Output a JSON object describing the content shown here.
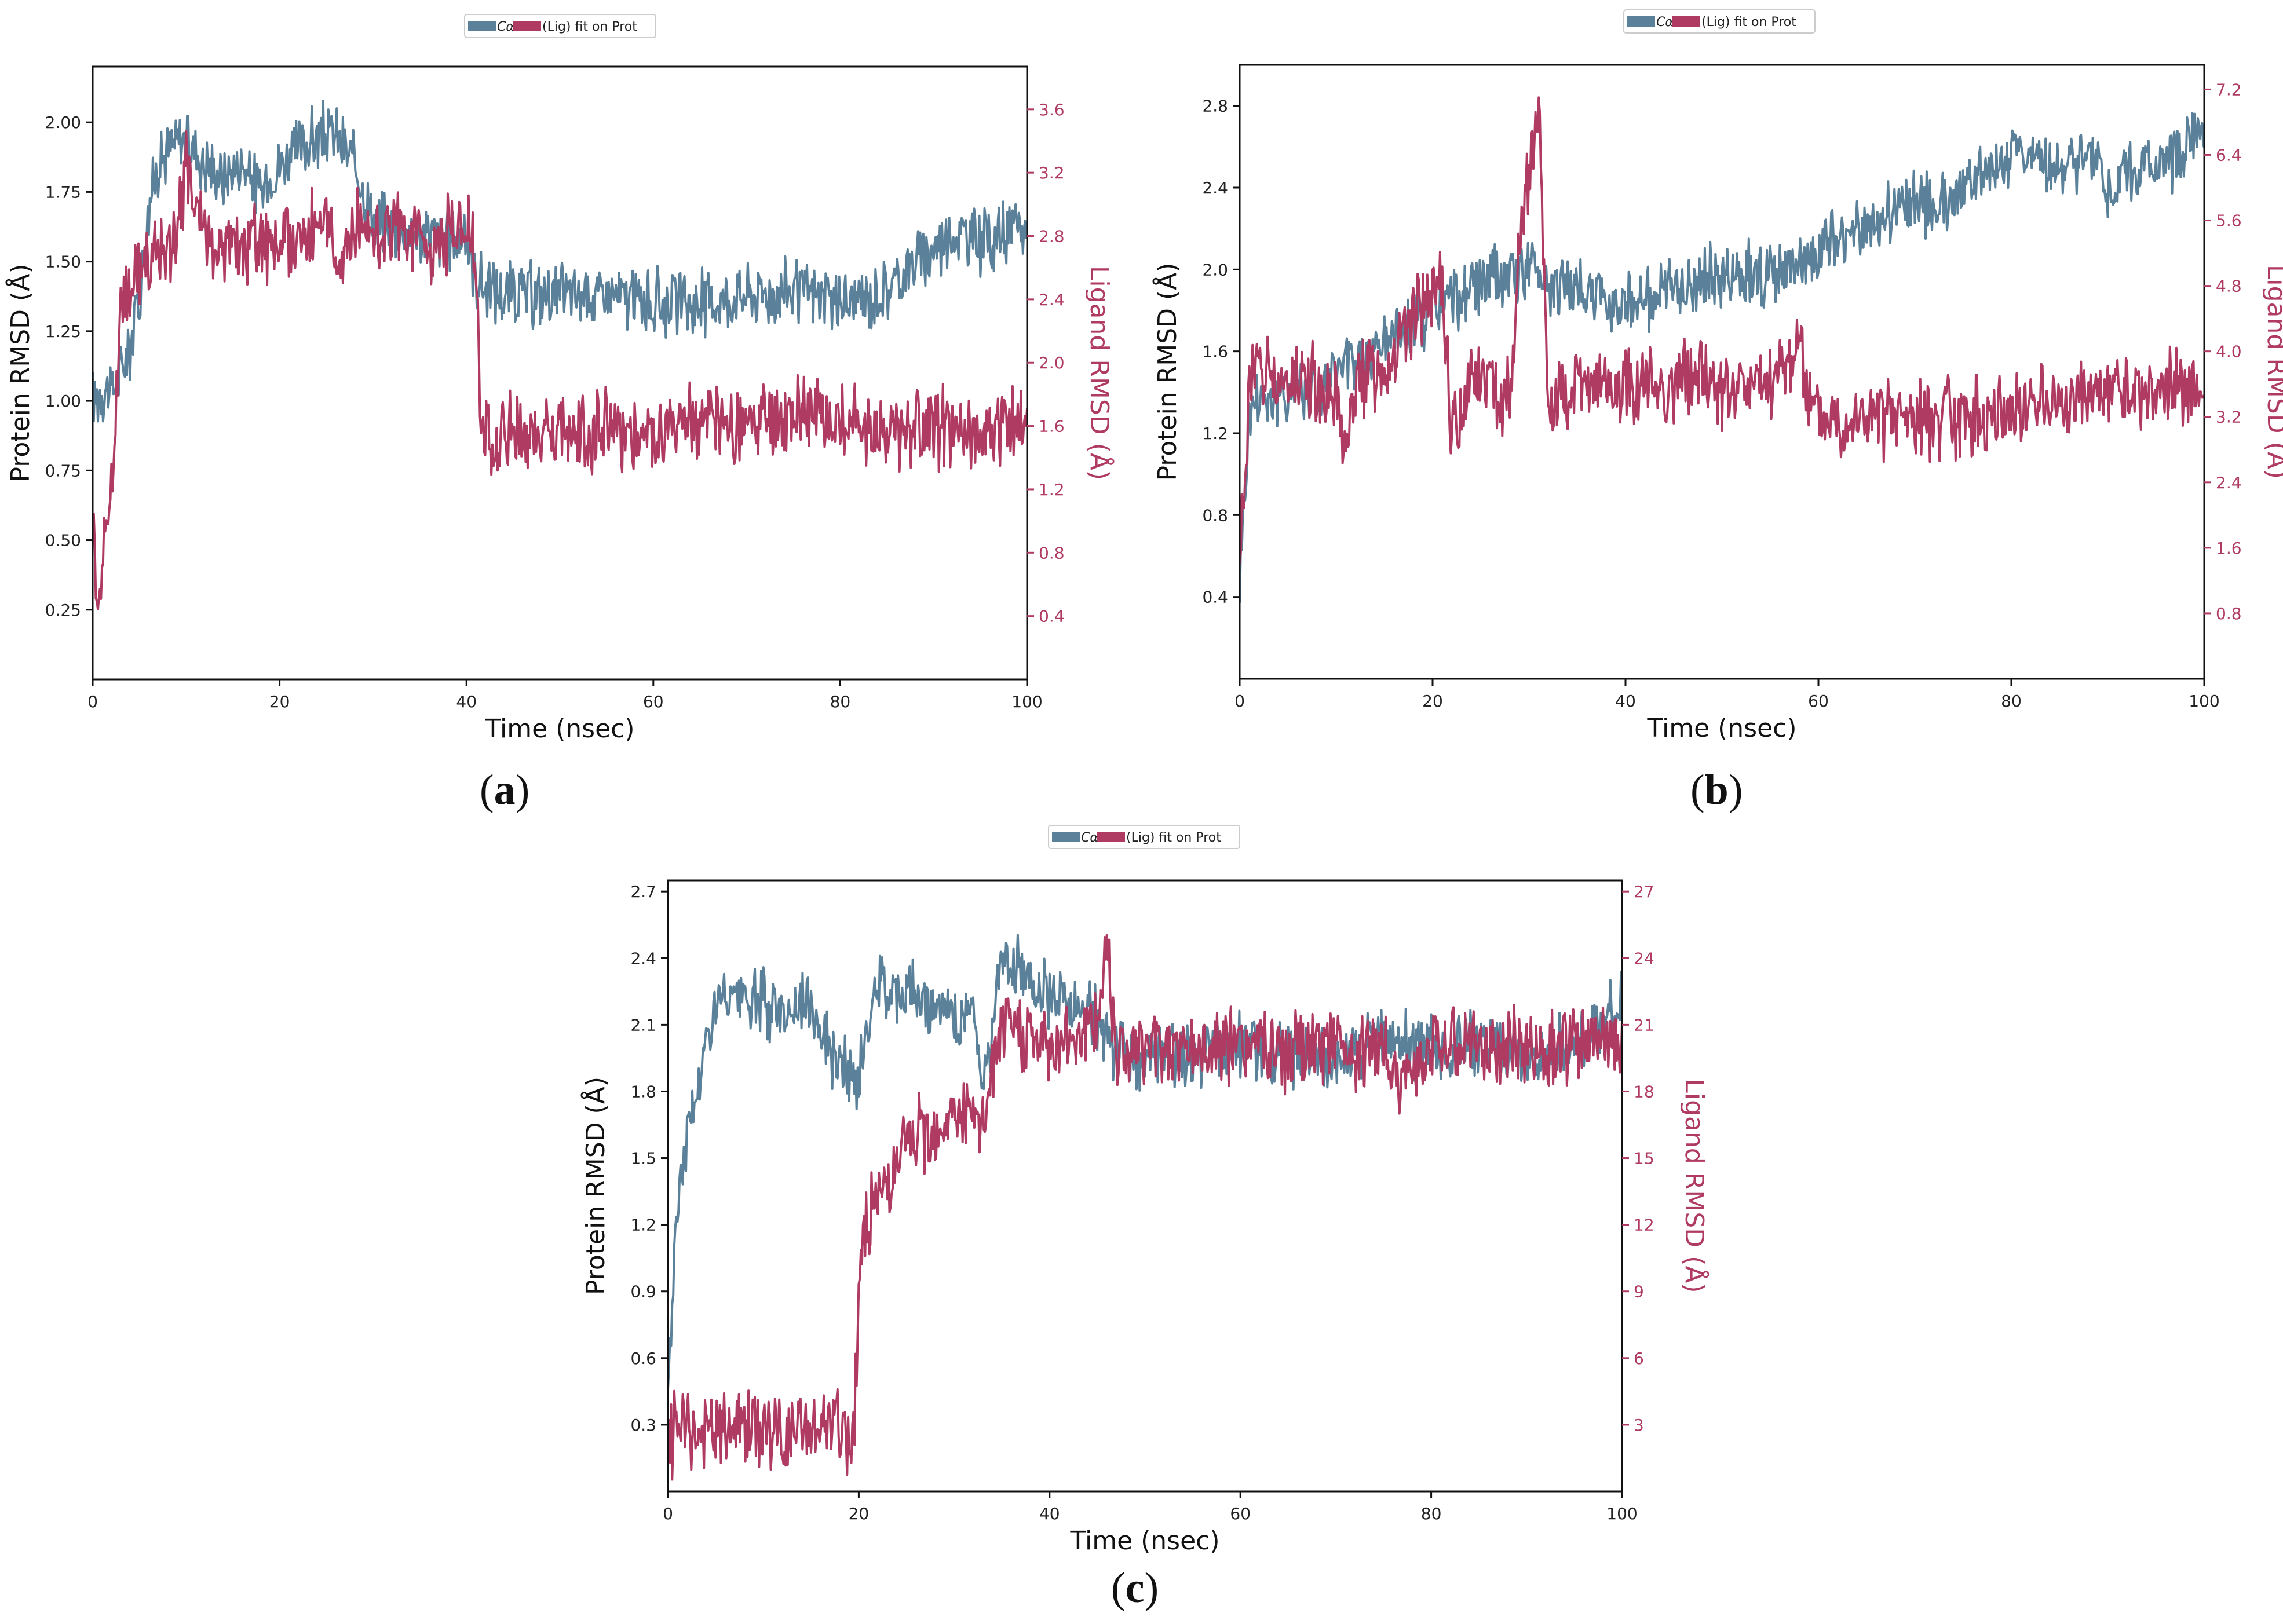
{
  "colors": {
    "protein": "#5a8199",
    "ligand": "#b03b62",
    "axis": "#111111"
  },
  "chart_data": [
    {
      "id": "a",
      "panel_label": "a",
      "type": "line",
      "legend": {
        "protein_label": "Cα",
        "ligand_label": "(Lig) fit on Prot",
        "placement": "top-center"
      },
      "xlabel": "Time (nsec)",
      "ylabel_left": "Protein RMSD (Å)",
      "ylabel_right": "Ligand RMSD (Å)",
      "xlim": [
        0,
        100
      ],
      "ylim_left": [
        0.0,
        2.2
      ],
      "ylim_right": [
        0.0,
        3.87
      ],
      "xticks": [
        0,
        20,
        40,
        60,
        80,
        100
      ],
      "xtick_labels": [
        "0",
        "20",
        "40",
        "60",
        "80",
        "100"
      ],
      "yticks_left": [
        0.25,
        0.5,
        0.75,
        1.0,
        1.25,
        1.5,
        1.75,
        2.0
      ],
      "ytick_labels_left": [
        "0.25",
        "0.50",
        "0.75",
        "1.00",
        "1.25",
        "1.50",
        "1.75",
        "2.00"
      ],
      "yticks_right": [
        0.4,
        0.8,
        1.2,
        1.6,
        2.0,
        2.4,
        2.8,
        3.2,
        3.6
      ],
      "ytick_labels_right": [
        "0.4",
        "0.8",
        "1.2",
        "1.6",
        "2.0",
        "2.4",
        "2.8",
        "3.2",
        "3.6"
      ],
      "series": [
        {
          "name": "Cα (Protein RMSD)",
          "axis": "left",
          "x": [
            0,
            1,
            2,
            3,
            4,
            5,
            6,
            7,
            8,
            10,
            12,
            14,
            16,
            18,
            20,
            22,
            24,
            26,
            28,
            30,
            32,
            34,
            36,
            38,
            40,
            41,
            42,
            45,
            50,
            55,
            60,
            65,
            70,
            75,
            80,
            82,
            85,
            88,
            90,
            92,
            95,
            98,
            100
          ],
          "values": [
            1.0,
            1.05,
            1.03,
            1.1,
            1.2,
            1.4,
            1.7,
            1.85,
            1.9,
            1.95,
            1.85,
            1.8,
            1.85,
            1.75,
            1.85,
            1.9,
            1.95,
            1.95,
            1.85,
            1.65,
            1.62,
            1.6,
            1.6,
            1.58,
            1.6,
            1.45,
            1.4,
            1.38,
            1.38,
            1.38,
            1.35,
            1.35,
            1.38,
            1.4,
            1.35,
            1.35,
            1.4,
            1.5,
            1.55,
            1.6,
            1.58,
            1.6,
            1.62
          ]
        },
        {
          "name": "(Lig) fit on Prot (Ligand RMSD)",
          "axis": "right",
          "x": [
            0,
            0.5,
            1,
            2,
            3,
            4,
            5,
            6,
            7,
            8,
            9,
            10,
            12,
            14,
            16,
            18,
            20,
            22,
            24,
            26,
            28,
            30,
            32,
            34,
            36,
            38,
            40,
            41,
            41.5,
            42,
            45,
            50,
            55,
            60,
            65,
            70,
            75,
            80,
            85,
            90,
            95,
            100
          ],
          "values": [
            1.1,
            0.5,
            0.7,
            1.2,
            2.3,
            2.5,
            2.6,
            2.6,
            2.65,
            2.75,
            2.8,
            3.2,
            2.8,
            2.75,
            2.7,
            2.8,
            2.75,
            2.8,
            2.85,
            2.75,
            2.8,
            2.85,
            2.85,
            2.8,
            2.75,
            2.8,
            2.9,
            2.65,
            1.6,
            1.5,
            1.55,
            1.55,
            1.6,
            1.55,
            1.6,
            1.6,
            1.65,
            1.65,
            1.55,
            1.6,
            1.55,
            1.6
          ]
        }
      ]
    },
    {
      "id": "b",
      "panel_label": "b",
      "type": "line",
      "legend": {
        "protein_label": "Cα",
        "ligand_label": "(Lig) fit on Prot",
        "placement": "top-center"
      },
      "xlabel": "Time (nsec)",
      "ylabel_left": "Protein RMSD (Å)",
      "ylabel_right": "Ligand RMSD (Å)",
      "xlim": [
        0,
        100
      ],
      "ylim_left": [
        0.0,
        3.0
      ],
      "ylim_right": [
        0.0,
        7.5
      ],
      "xticks": [
        0,
        20,
        40,
        60,
        80,
        100
      ],
      "xtick_labels": [
        "0",
        "20",
        "40",
        "60",
        "80",
        "100"
      ],
      "yticks_left": [
        0.4,
        0.8,
        1.2,
        1.6,
        2.0,
        2.4,
        2.8
      ],
      "ytick_labels_left": [
        "0.4",
        "0.8",
        "1.2",
        "1.6",
        "2.0",
        "2.4",
        "2.8"
      ],
      "yticks_right": [
        0.8,
        1.6,
        2.4,
        3.2,
        4.0,
        4.8,
        5.6,
        6.4,
        7.2
      ],
      "ytick_labels_right": [
        "0.8",
        "1.6",
        "2.4",
        "3.2",
        "4.0",
        "4.8",
        "5.6",
        "6.4",
        "7.2"
      ],
      "series": [
        {
          "name": "Cα (Protein RMSD)",
          "axis": "left",
          "x": [
            0,
            1,
            2,
            4,
            6,
            8,
            10,
            12,
            14,
            16,
            18,
            20,
            22,
            24,
            26,
            28,
            30,
            32,
            35,
            38,
            40,
            42,
            45,
            48,
            50,
            52,
            55,
            58,
            60,
            62,
            65,
            68,
            70,
            72,
            75,
            78,
            80,
            82,
            85,
            88,
            90,
            92,
            95,
            98,
            100
          ],
          "values": [
            0.5,
            1.3,
            1.4,
            1.35,
            1.45,
            1.4,
            1.5,
            1.55,
            1.6,
            1.7,
            1.75,
            1.8,
            1.85,
            1.9,
            1.95,
            1.95,
            2.0,
            1.95,
            1.9,
            1.85,
            1.85,
            1.85,
            1.9,
            1.95,
            1.95,
            2.0,
            1.95,
            2.0,
            2.1,
            2.15,
            2.2,
            2.3,
            2.35,
            2.3,
            2.4,
            2.5,
            2.55,
            2.6,
            2.5,
            2.55,
            2.4,
            2.5,
            2.5,
            2.6,
            2.75
          ]
        },
        {
          "name": "(Lig) fit on Prot (Ligand RMSD)",
          "axis": "right",
          "x": [
            0,
            1,
            2,
            4,
            6,
            8,
            10,
            11,
            12,
            14,
            16,
            18,
            20,
            21,
            22,
            24,
            26,
            28,
            29,
            30,
            31,
            32,
            35,
            38,
            40,
            42,
            45,
            48,
            50,
            52,
            55,
            57,
            58,
            59,
            60,
            65,
            70,
            75,
            80,
            85,
            90,
            95,
            100
          ],
          "values": [
            1.5,
            3.5,
            4.0,
            3.5,
            3.8,
            3.6,
            3.4,
            2.8,
            3.6,
            3.8,
            4.0,
            4.4,
            4.6,
            4.8,
            3.0,
            3.8,
            3.6,
            3.4,
            5.2,
            6.2,
            7.0,
            3.3,
            3.5,
            3.6,
            3.5,
            3.7,
            3.6,
            3.8,
            3.5,
            3.6,
            3.6,
            3.9,
            4.2,
            3.4,
            3.2,
            3.2,
            3.2,
            3.2,
            3.3,
            3.4,
            3.5,
            3.5,
            3.6
          ]
        }
      ]
    },
    {
      "id": "c",
      "panel_label": "c",
      "type": "line",
      "legend": {
        "protein_label": "Cα",
        "ligand_label": "(Lig) fit on Prot",
        "placement": "top-center"
      },
      "xlabel": "Time (nsec)",
      "ylabel_left": "Protein RMSD (Å)",
      "ylabel_right": "Ligand RMSD (Å)",
      "xlim": [
        0,
        100
      ],
      "ylim_left": [
        0.0,
        2.75
      ],
      "ylim_right": [
        0.0,
        27.5
      ],
      "xticks": [
        0,
        20,
        40,
        60,
        80,
        100
      ],
      "xtick_labels": [
        "0",
        "20",
        "40",
        "60",
        "80",
        "100"
      ],
      "yticks_left": [
        0.3,
        0.6,
        0.9,
        1.2,
        1.5,
        1.8,
        2.1,
        2.4,
        2.7
      ],
      "ytick_labels_left": [
        "0.3",
        "0.6",
        "0.9",
        "1.2",
        "1.5",
        "1.8",
        "2.1",
        "2.4",
        "2.7"
      ],
      "yticks_right": [
        3,
        6,
        9,
        12,
        15,
        18,
        21,
        24,
        27
      ],
      "ytick_labels_right": [
        "3",
        "6",
        "9",
        "12",
        "15",
        "18",
        "21",
        "24",
        "27"
      ],
      "series": [
        {
          "name": "Cα (Protein RMSD)",
          "axis": "left",
          "x": [
            0,
            1,
            2,
            3,
            4,
            5,
            7,
            10,
            12,
            15,
            17,
            18,
            20,
            22,
            25,
            28,
            30,
            32,
            33,
            35,
            38,
            40,
            42,
            45,
            46,
            50,
            55,
            60,
            65,
            70,
            75,
            80,
            85,
            90,
            95,
            98,
            100
          ],
          "values": [
            0.5,
            1.3,
            1.6,
            1.8,
            2.0,
            2.2,
            2.2,
            2.2,
            2.15,
            2.2,
            2.0,
            1.9,
            1.85,
            2.3,
            2.25,
            2.2,
            2.1,
            2.2,
            1.8,
            2.4,
            2.3,
            2.25,
            2.2,
            2.15,
            2.0,
            1.95,
            1.95,
            2.0,
            1.95,
            1.95,
            2.05,
            2.0,
            2.0,
            1.95,
            2.0,
            2.1,
            2.2
          ]
        },
        {
          "name": "(Lig) fit on Prot (Ligand RMSD)",
          "axis": "right",
          "x": [
            0,
            1,
            3,
            5,
            8,
            10,
            12,
            15,
            18,
            19.5,
            20,
            21,
            23,
            25,
            28,
            30,
            33,
            34,
            35,
            38,
            40,
            42,
            45,
            46,
            47,
            50,
            55,
            60,
            65,
            70,
            75,
            77,
            78,
            80,
            85,
            90,
            95,
            100
          ],
          "values": [
            2.0,
            3.0,
            2.5,
            2.7,
            3.0,
            2.8,
            2.5,
            2.6,
            2.8,
            2.5,
            10.0,
            12.0,
            14.0,
            15.5,
            16.5,
            17.0,
            16.5,
            19.0,
            21.0,
            20.5,
            20.0,
            20.5,
            21.0,
            25.0,
            20.0,
            20.0,
            20.0,
            20.0,
            19.5,
            20.0,
            20.0,
            18.0,
            19.5,
            20.0,
            20.0,
            20.0,
            20.0,
            20.5
          ]
        }
      ]
    }
  ]
}
